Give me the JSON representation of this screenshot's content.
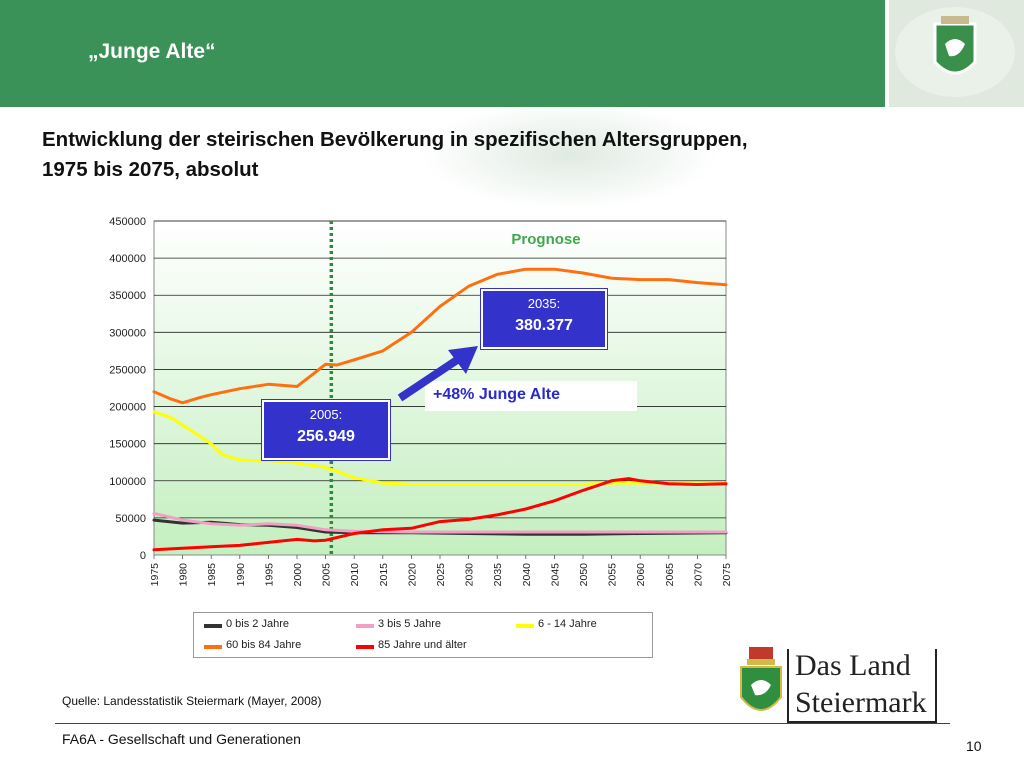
{
  "header": {
    "title": "„Junge Alte“"
  },
  "subtitle": {
    "line1": "Entwicklung der steirischen Bevölkerung in spezifischen Altersgruppen,",
    "line2": "1975 bis 2075, absolut"
  },
  "callouts": {
    "c2005": {
      "year": "2005:",
      "value": "256.949"
    },
    "c2035": {
      "year": "2035:",
      "value": "380.377"
    },
    "growth": "+48% Junge Alte"
  },
  "source": "Quelle: Landesstatistik Steiermark (Mayer, 2008)",
  "footer": {
    "text": "FA6A - Gesellschaft und Generationen",
    "page": "10"
  },
  "logo": {
    "line1": "Das Land",
    "line2": "Steiermark"
  },
  "colors": {
    "header_green": "#3a9258",
    "callout_blue": "#3333cc"
  },
  "chart_data": {
    "type": "line",
    "annotation": "Prognose",
    "forecast_start": 2006,
    "ylim": [
      0,
      450000
    ],
    "yticks": [
      0,
      50000,
      100000,
      150000,
      200000,
      250000,
      300000,
      350000,
      400000,
      450000
    ],
    "ytick_labels": [
      "0",
      "50000",
      "100000",
      "150000",
      "200000",
      "250000",
      "300000",
      "350000",
      "400000",
      "450000"
    ],
    "xlim": [
      1975,
      2075
    ],
    "xtick_labels": [
      "1975",
      "1980",
      "1985",
      "1990",
      "1995",
      "2000",
      "2005",
      "2010",
      "2015",
      "2020",
      "2025",
      "2030",
      "2035",
      "2040",
      "2045",
      "2050",
      "2055",
      "2060",
      "2065",
      "2070",
      "2075"
    ],
    "series": [
      {
        "name": "0 bis 2 Jahre",
        "color": "#333333",
        "x": [
          1975,
          1980,
          1985,
          1990,
          1995,
          2000,
          2005,
          2010,
          2020,
          2030,
          2040,
          2050,
          2060,
          2075
        ],
        "y": [
          47000,
          43000,
          44000,
          41000,
          40000,
          37000,
          31000,
          30000,
          30000,
          29000,
          28000,
          28000,
          29000,
          30000
        ]
      },
      {
        "name": "3 bis 5 Jahre",
        "color": "#f29fc5",
        "x": [
          1975,
          1980,
          1985,
          1990,
          1995,
          2000,
          2005,
          2010,
          2020,
          2030,
          2040,
          2050,
          2060,
          2075
        ],
        "y": [
          56000,
          47000,
          42000,
          40000,
          42000,
          40000,
          34000,
          32000,
          31000,
          31000,
          31000,
          31000,
          31000,
          31000
        ]
      },
      {
        "name": "6 - 14 Jahre",
        "color": "#ffff00",
        "x": [
          1975,
          1978,
          1980,
          1983,
          1985,
          1987,
          1990,
          1993,
          1995,
          2000,
          2005,
          2008,
          2010,
          2015,
          2020,
          2030,
          2040,
          2050,
          2055,
          2060,
          2065,
          2070,
          2075
        ],
        "y": [
          193000,
          185000,
          175000,
          160000,
          150000,
          135000,
          128000,
          127000,
          127000,
          124000,
          118000,
          110000,
          104000,
          97000,
          95000,
          95000,
          95000,
          95000,
          97000,
          97000,
          97000,
          97000,
          97000
        ]
      },
      {
        "name": "60 bis 84 Jahre",
        "color": "#ff6f0f",
        "x": [
          1975,
          1978,
          1980,
          1983,
          1985,
          1990,
          1995,
          2000,
          2003,
          2005,
          2007,
          2010,
          2015,
          2020,
          2025,
          2030,
          2035,
          2040,
          2045,
          2050,
          2055,
          2060,
          2065,
          2070,
          2075
        ],
        "y": [
          220000,
          210000,
          205000,
          212000,
          216000,
          224000,
          230000,
          227000,
          245000,
          257000,
          256000,
          263000,
          275000,
          300000,
          335000,
          362000,
          378000,
          385000,
          385000,
          380000,
          373000,
          371000,
          371000,
          367000,
          364000
        ]
      },
      {
        "name": "85 Jahre und älter",
        "color": "#ff0000",
        "x": [
          1975,
          1980,
          1985,
          1990,
          1995,
          2000,
          2003,
          2005,
          2010,
          2015,
          2020,
          2025,
          2030,
          2035,
          2040,
          2045,
          2050,
          2055,
          2058,
          2060,
          2065,
          2070,
          2075
        ],
        "y": [
          7000,
          9000,
          11000,
          13000,
          17000,
          21000,
          19000,
          20000,
          29000,
          34000,
          36000,
          45000,
          48000,
          54000,
          62000,
          73000,
          87000,
          100000,
          103000,
          100000,
          96000,
          95000,
          96000
        ]
      }
    ]
  }
}
